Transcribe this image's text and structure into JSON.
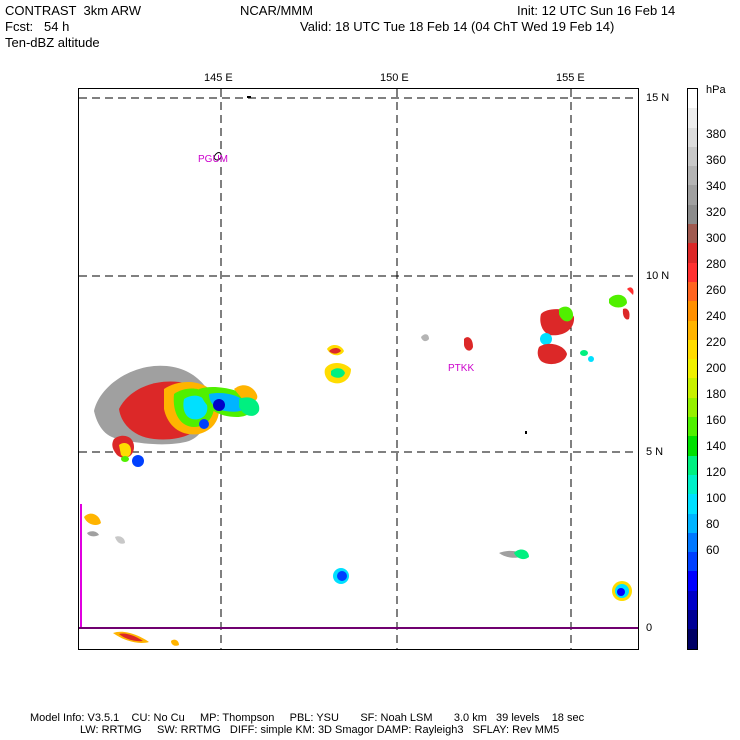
{
  "header": {
    "line1_left": "CONTRAST  3km ARW",
    "line1_mid": "NCAR/MMM",
    "line1_right": "Init: 12 UTC Sun 16 Feb 14",
    "line2_left": "Fcst:   54 h",
    "line2_right": "Valid: 18 UTC Tue 18 Feb 14 (04 ChT Wed 19 Feb 14)",
    "line3_left": "Ten-dBZ altitude"
  },
  "map": {
    "lon_labels": [
      "145 E",
      "150 E",
      "155 E"
    ],
    "lat_labels": [
      "15 N",
      "10 N",
      "5 N",
      "0"
    ],
    "stations": [
      {
        "name": "PGUM",
        "color": "#cc00cc"
      },
      {
        "name": "PTKK",
        "color": "#cc00cc"
      }
    ]
  },
  "colorbar": {
    "unit": "hPa",
    "labels": [
      "380",
      "360",
      "340",
      "320",
      "300",
      "280",
      "260",
      "240",
      "220",
      "200",
      "180",
      "160",
      "140",
      "120",
      "100",
      "80",
      "60"
    ],
    "colors": [
      "#ffffff",
      "#ededed",
      "#dcdcdc",
      "#c8c8c8",
      "#b4b4b4",
      "#a0a0a0",
      "#8c8c8c",
      "#a05a50",
      "#dc2828",
      "#ff3030",
      "#ff6420",
      "#ff9000",
      "#ffb400",
      "#ffdc00",
      "#f0f000",
      "#c8f000",
      "#96f000",
      "#50f000",
      "#00e000",
      "#00f080",
      "#00f0c8",
      "#00e0ff",
      "#00b4ff",
      "#0078ff",
      "#0040ff",
      "#0000ff",
      "#0000c8",
      "#000096",
      "#000064"
    ]
  },
  "footer": {
    "line1": "Model Info: V3.5.1    CU: No Cu     MP: Thompson     PBL: YSU       SF: Noah LSM       3.0 km   39 levels    18 sec",
    "line2": "LW: RRTMG     SW: RRTMG   DIFF: simple KM: 3D Smagor DAMP: Rayleigh3   SFLAY: Rev MM5"
  }
}
